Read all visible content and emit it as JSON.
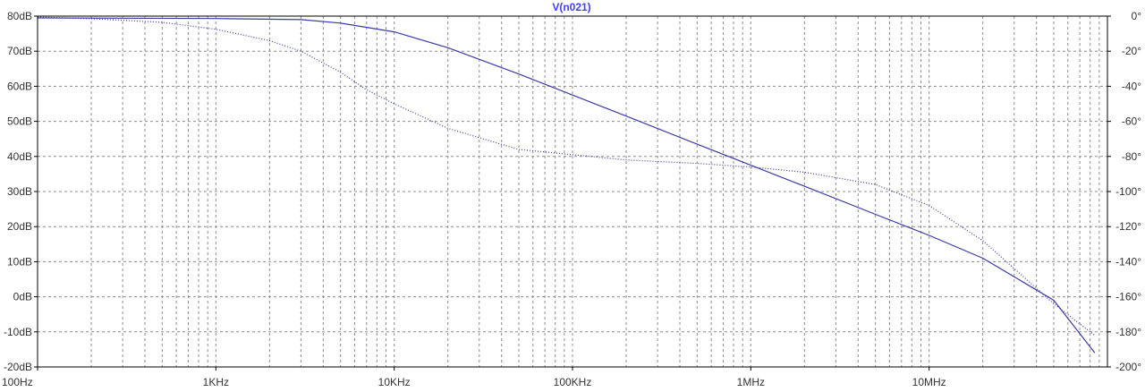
{
  "chart_data": {
    "type": "line",
    "title": "V(n021)",
    "title_color": "#3f3fff",
    "x_scale": "log",
    "xlim": [
      100,
      100000000
    ],
    "x_tick_values": [
      100,
      1000,
      10000,
      100000,
      1000000,
      10000000
    ],
    "x_tick_labels": [
      "100Hz",
      "1KHz",
      "10KHz",
      "100KHz",
      "1MHz",
      "10MHz"
    ],
    "ylim_left": [
      -20,
      80
    ],
    "y_left_tick_values": [
      80,
      70,
      60,
      50,
      40,
      30,
      20,
      10,
      0,
      -10,
      -20
    ],
    "y_left_tick_labels": [
      "80dB",
      "70dB",
      "60dB",
      "50dB",
      "40dB",
      "30dB",
      "20dB",
      "10dB",
      "0dB",
      "-10dB",
      "-20dB"
    ],
    "ylim_right": [
      -200,
      0
    ],
    "y_right_tick_values": [
      0,
      -20,
      -40,
      -60,
      -80,
      -100,
      -120,
      -140,
      -160,
      -180,
      -200
    ],
    "y_right_tick_labels": [
      "0°",
      "-20°",
      "-40°",
      "-60°",
      "-80°",
      "-100°",
      "-120°",
      "-140°",
      "-160°",
      "-180°",
      "-200°"
    ],
    "grid": true,
    "series": [
      {
        "axis": "left",
        "style": "solid",
        "color": "#3a3aa8",
        "x": [
          100,
          1000,
          3000,
          5000,
          10000,
          20000,
          50000,
          100000,
          200000,
          500000,
          1000000,
          2000000,
          5000000,
          10000000,
          20000000,
          50000000,
          85000000
        ],
        "y": [
          79.5,
          79.3,
          79,
          78,
          75.5,
          71,
          63.5,
          57.5,
          51.5,
          43.5,
          37.5,
          31.5,
          23.5,
          17.5,
          11,
          -1,
          -16
        ]
      },
      {
        "axis": "right",
        "style": "dotted",
        "color": "#3a3aa8",
        "x": [
          100,
          200,
          500,
          1000,
          2000,
          3000,
          5000,
          7000,
          10000,
          20000,
          50000,
          100000,
          200000,
          500000,
          1000000,
          2000000,
          5000000,
          10000000,
          20000000,
          50000000,
          85000000
        ],
        "y": [
          -0.5,
          -1.5,
          -3.5,
          -7.5,
          -14,
          -20,
          -32,
          -42,
          -50,
          -64,
          -76,
          -79,
          -82,
          -84,
          -86,
          -89,
          -96,
          -108,
          -128,
          -164,
          -182
        ]
      }
    ]
  }
}
